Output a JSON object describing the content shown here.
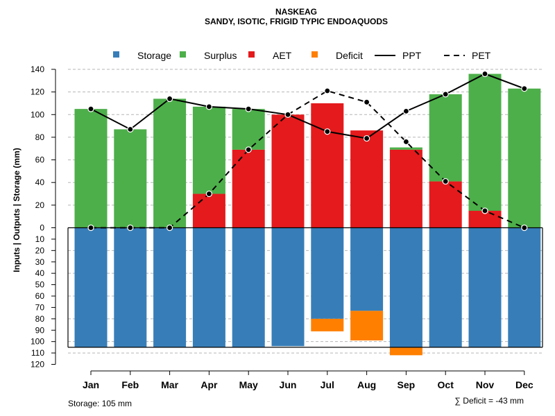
{
  "chart_data": {
    "type": "bar",
    "title": "NASKEAG",
    "subtitle": "SANDY, ISOTIC, FRIGID TYPIC ENDOAQUODS",
    "ylabel": "Inputs | Outputs | Storage    (mm)",
    "categories": [
      "Jan",
      "Feb",
      "Mar",
      "Apr",
      "May",
      "Jun",
      "Jul",
      "Aug",
      "Sep",
      "Oct",
      "Nov",
      "Dec"
    ],
    "upper_ylim": [
      0,
      140
    ],
    "upper_ticks": [
      0,
      20,
      40,
      60,
      80,
      100,
      120,
      140
    ],
    "lower_ylim": [
      0,
      120
    ],
    "lower_ticks": [
      10,
      20,
      30,
      40,
      50,
      60,
      70,
      80,
      90,
      100,
      110,
      120
    ],
    "legend": [
      {
        "label": "Storage",
        "color": "#377EB8",
        "kind": "box"
      },
      {
        "label": "Surplus",
        "color": "#4DAF4A",
        "kind": "box"
      },
      {
        "label": "AET",
        "color": "#E41A1C",
        "kind": "box"
      },
      {
        "label": "Deficit",
        "color": "#FF7F00",
        "kind": "box"
      },
      {
        "label": "PPT",
        "color": "#000000",
        "kind": "solid"
      },
      {
        "label": "PET",
        "color": "#000000",
        "kind": "dashed"
      }
    ],
    "series": [
      {
        "name": "AET",
        "color": "#E41A1C",
        "values": [
          0,
          0,
          0,
          30,
          69,
          100,
          110,
          86,
          69,
          41,
          15,
          0
        ]
      },
      {
        "name": "Surplus",
        "color": "#4DAF4A",
        "values": [
          105,
          87,
          114,
          77,
          36,
          0,
          0,
          0,
          2,
          77,
          121,
          123
        ]
      },
      {
        "name": "Storage",
        "color": "#377EB8",
        "values": [
          105,
          105,
          105,
          105,
          105,
          104,
          80,
          73,
          105,
          105,
          105,
          105
        ]
      },
      {
        "name": "Deficit",
        "color": "#FF7F00",
        "values": [
          0,
          0,
          0,
          0,
          0,
          0,
          11,
          26,
          7,
          0,
          0,
          0
        ]
      },
      {
        "name": "PPT",
        "style": "solid",
        "values": [
          105,
          87,
          114,
          107,
          105,
          100,
          85,
          79,
          103,
          118,
          136,
          123
        ]
      },
      {
        "name": "PET",
        "style": "dashed",
        "values": [
          0,
          0,
          0,
          30,
          69,
          100,
          121,
          111,
          76,
          41,
          15,
          0
        ]
      }
    ],
    "storage_capacity": 105,
    "storage_note": "Storage: 105 mm",
    "deficit_note": "∑ Deficit = -43 mm"
  }
}
